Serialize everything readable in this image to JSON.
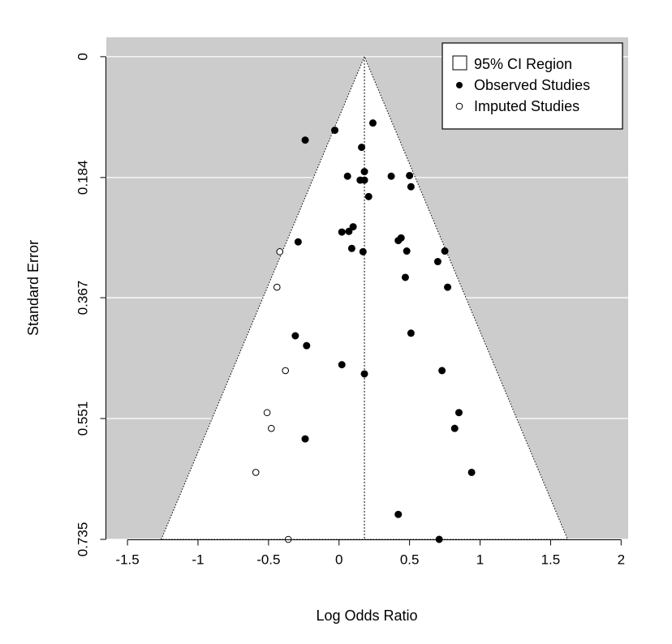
{
  "chart_data": {
    "type": "scatter",
    "title": "",
    "xlabel": "Log Odds Ratio",
    "ylabel": "Standard Error",
    "xlim": [
      -1.65,
      2.05
    ],
    "ylim": [
      0.735,
      -0.0295
    ],
    "y_reversed": true,
    "x_ticks": [
      -1.5,
      -1,
      -0.5,
      0,
      0.5,
      1,
      1.5,
      2
    ],
    "x_tick_labels": [
      "-1.5",
      "-1",
      "-0.5",
      "0",
      "0.5",
      "1",
      "1.5",
      "2"
    ],
    "y_ticks": [
      0,
      0.184,
      0.367,
      0.551,
      0.735
    ],
    "y_tick_labels": [
      "0",
      "0.184",
      "0.367",
      "0.551",
      "0.735"
    ],
    "pooled_estimate": 0.18,
    "ci_multiplier": 1.96,
    "background_color": "#cccccc",
    "region_color": "#ffffff",
    "grid": "horizontal, white",
    "legend": {
      "position": "top-right",
      "entries": [
        "95% CI Region",
        "Observed Studies",
        "Imputed Studies"
      ]
    },
    "series": [
      {
        "name": "Observed Studies",
        "marker": "filled-circle",
        "color": "#000000",
        "points": [
          [
            -0.24,
            0.127
          ],
          [
            -0.03,
            0.112
          ],
          [
            0.24,
            0.101
          ],
          [
            0.16,
            0.138
          ],
          [
            0.18,
            0.175
          ],
          [
            0.06,
            0.182
          ],
          [
            0.37,
            0.182
          ],
          [
            0.5,
            0.181
          ],
          [
            0.15,
            0.188
          ],
          [
            0.18,
            0.188
          ],
          [
            0.51,
            0.198
          ],
          [
            0.21,
            0.213
          ],
          [
            0.1,
            0.259
          ],
          [
            0.07,
            0.266
          ],
          [
            0.02,
            0.267
          ],
          [
            0.44,
            0.276
          ],
          [
            0.42,
            0.28
          ],
          [
            -0.29,
            0.282
          ],
          [
            0.09,
            0.292
          ],
          [
            0.17,
            0.297
          ],
          [
            0.48,
            0.296
          ],
          [
            0.75,
            0.296
          ],
          [
            0.7,
            0.312
          ],
          [
            0.47,
            0.336
          ],
          [
            0.77,
            0.351
          ],
          [
            0.51,
            0.421
          ],
          [
            -0.31,
            0.425
          ],
          [
            -0.23,
            0.44
          ],
          [
            0.02,
            0.469
          ],
          [
            0.18,
            0.483
          ],
          [
            0.73,
            0.478
          ],
          [
            0.85,
            0.542
          ],
          [
            0.82,
            0.566
          ],
          [
            -0.24,
            0.582
          ],
          [
            0.94,
            0.633
          ],
          [
            0.42,
            0.697
          ],
          [
            0.71,
            0.735
          ]
        ]
      },
      {
        "name": "Imputed Studies",
        "marker": "open-circle",
        "color": "#000000",
        "points": [
          [
            -0.42,
            0.297
          ],
          [
            -0.44,
            0.351
          ],
          [
            -0.38,
            0.478
          ],
          [
            -0.51,
            0.542
          ],
          [
            -0.48,
            0.566
          ],
          [
            -0.59,
            0.633
          ],
          [
            -0.36,
            0.735
          ]
        ]
      }
    ]
  }
}
